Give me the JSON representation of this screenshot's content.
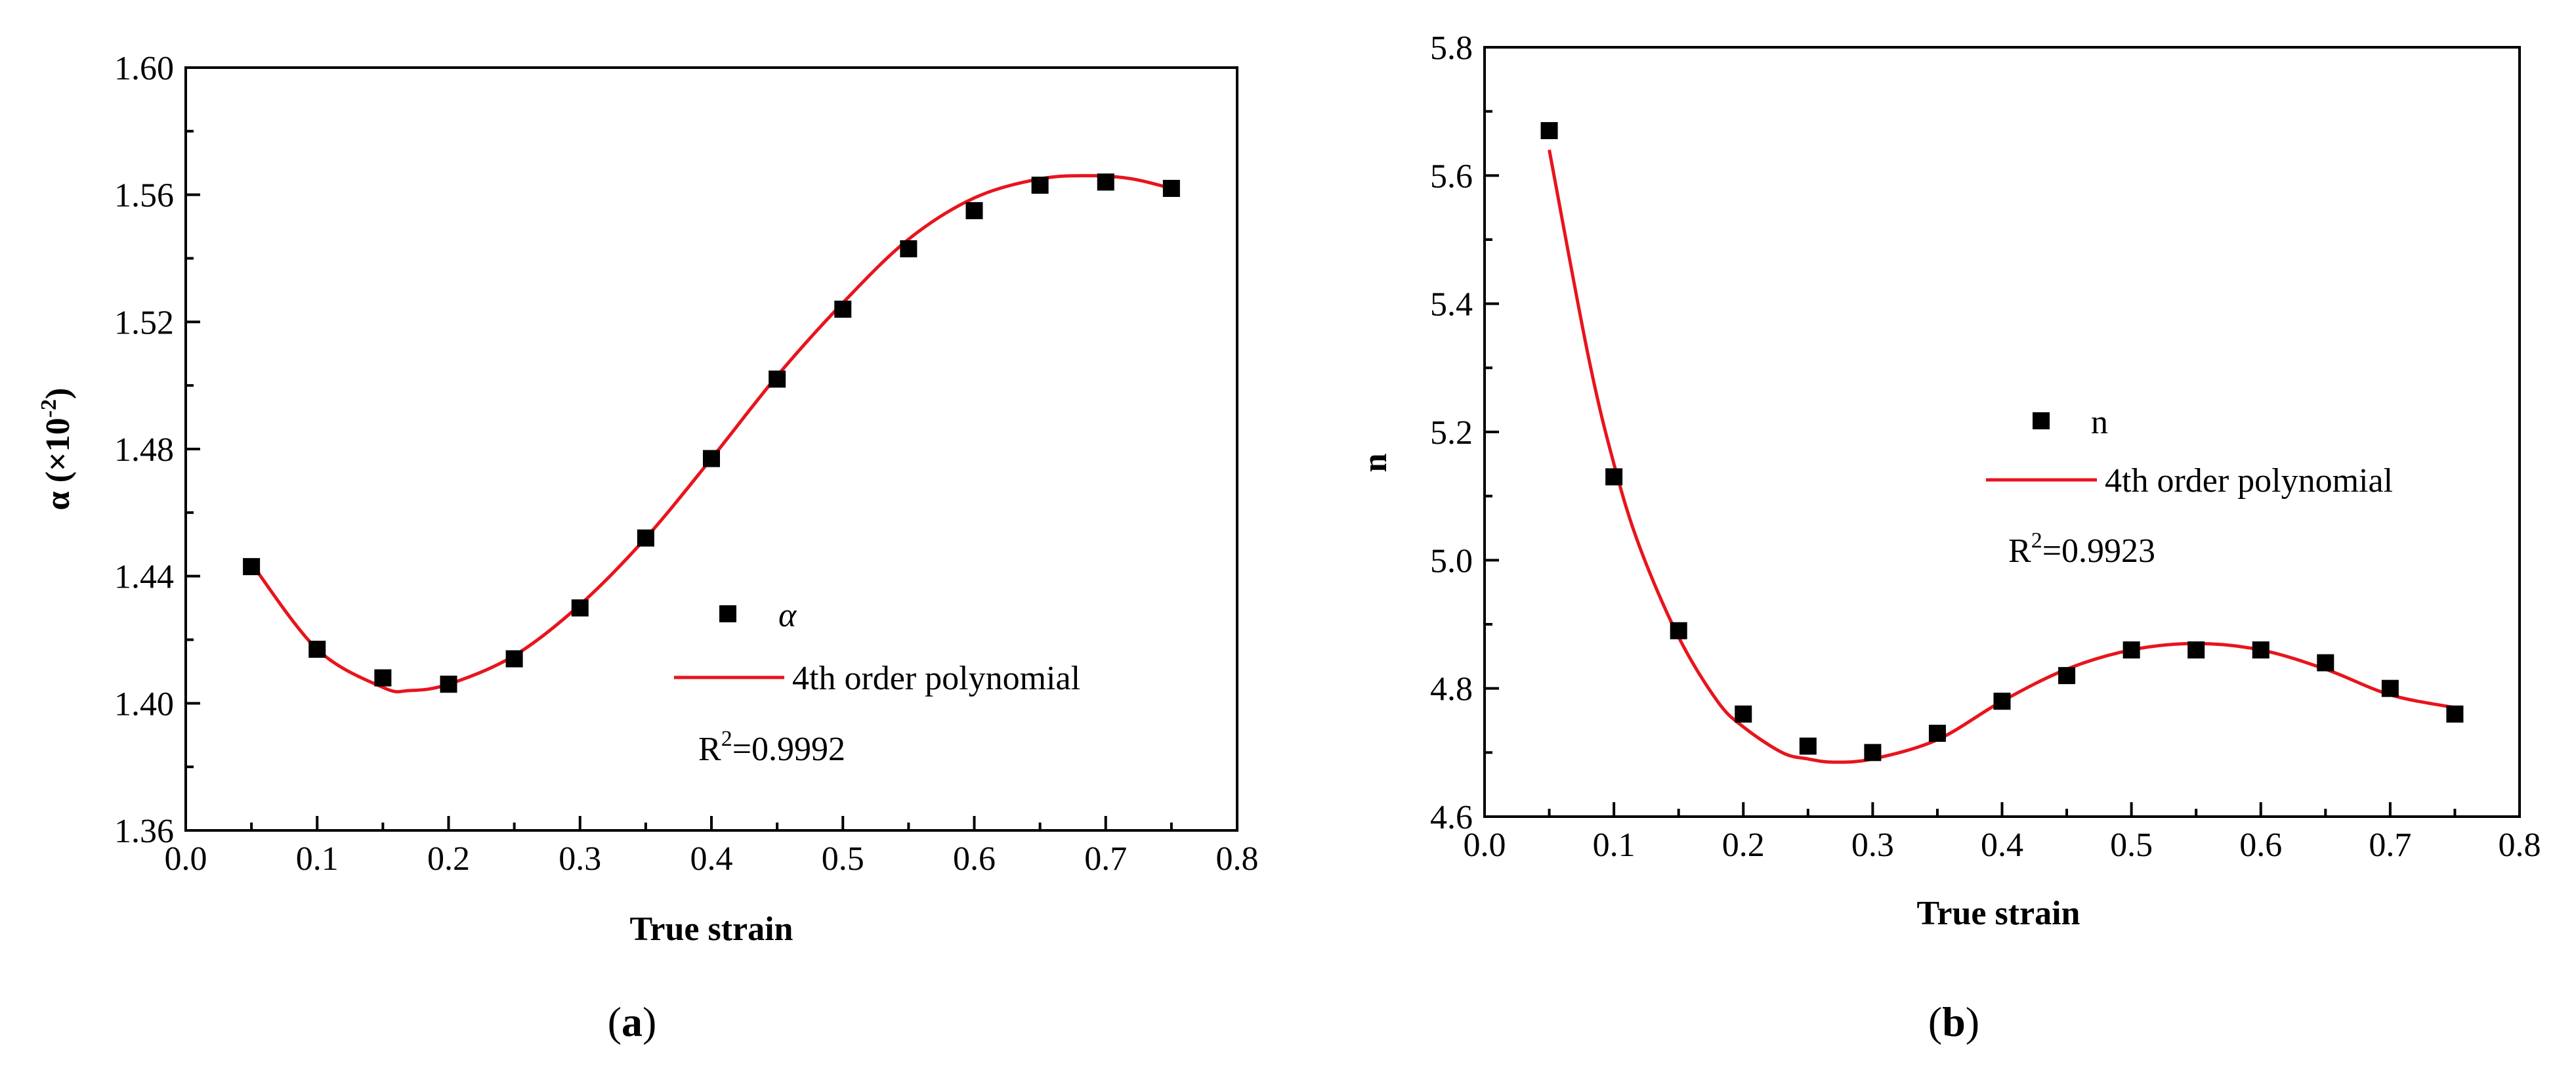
{
  "chart_data": [
    {
      "type": "scatter",
      "panel_label": "a",
      "title": "",
      "xlabel": "True strain",
      "ylabel": "α (×10⁻²)",
      "ylabel_main": "α (×10",
      "ylabel_exp": "-2",
      "ylabel_close": ")",
      "xlim": [
        0.0,
        0.8
      ],
      "ylim": [
        1.36,
        1.6
      ],
      "x_ticks": [
        0.0,
        0.1,
        0.2,
        0.3,
        0.4,
        0.5,
        0.6,
        0.7,
        0.8
      ],
      "x_tick_labels": [
        "0.0",
        "0.1",
        "0.2",
        "0.3",
        "0.4",
        "0.5",
        "0.6",
        "0.7",
        "0.8"
      ],
      "y_ticks": [
        1.36,
        1.4,
        1.44,
        1.48,
        1.52,
        1.56,
        1.6
      ],
      "y_tick_labels": [
        "1.36",
        "1.40",
        "1.44",
        "1.48",
        "1.52",
        "1.56",
        "1.60"
      ],
      "series": [
        {
          "name": "α",
          "kind": "points",
          "x": [
            0.05,
            0.1,
            0.15,
            0.2,
            0.25,
            0.3,
            0.35,
            0.4,
            0.45,
            0.5,
            0.55,
            0.6,
            0.65,
            0.7,
            0.75
          ],
          "y": [
            1.443,
            1.417,
            1.408,
            1.406,
            1.414,
            1.43,
            1.452,
            1.477,
            1.502,
            1.524,
            1.543,
            1.555,
            1.563,
            1.564,
            1.562
          ]
        },
        {
          "name": "4th order polynomial",
          "kind": "fit",
          "x": [
            0.05,
            0.1,
            0.15,
            0.17,
            0.2,
            0.25,
            0.3,
            0.35,
            0.4,
            0.45,
            0.5,
            0.55,
            0.6,
            0.65,
            0.69,
            0.72,
            0.75
          ],
          "y": [
            1.444,
            1.417,
            1.405,
            1.404,
            1.406,
            1.415,
            1.431,
            1.452,
            1.477,
            1.503,
            1.526,
            1.546,
            1.559,
            1.565,
            1.566,
            1.565,
            1.562
          ]
        }
      ],
      "legend_position": "center-right",
      "annotation_r2_label": "R",
      "annotation_r2_exp": "2",
      "annotation_r2_value": "=0.9992",
      "colors": {
        "points": "#000000",
        "fit": "#e8141c"
      }
    },
    {
      "type": "scatter",
      "panel_label": "b",
      "title": "",
      "xlabel": "True strain",
      "ylabel": "n",
      "xlim": [
        0.0,
        0.8
      ],
      "ylim": [
        4.6,
        5.8
      ],
      "x_ticks": [
        0.0,
        0.1,
        0.2,
        0.3,
        0.4,
        0.5,
        0.6,
        0.7,
        0.8
      ],
      "x_tick_labels": [
        "0.0",
        "0.1",
        "0.2",
        "0.3",
        "0.4",
        "0.5",
        "0.6",
        "0.7",
        "0.8"
      ],
      "y_ticks": [
        4.6,
        4.8,
        5.0,
        5.2,
        5.4,
        5.6,
        5.8
      ],
      "y_tick_labels": [
        "4.6",
        "4.8",
        "5.0",
        "5.2",
        "5.4",
        "5.6",
        "5.8"
      ],
      "series": [
        {
          "name": "n",
          "kind": "points",
          "x": [
            0.05,
            0.1,
            0.15,
            0.2,
            0.25,
            0.3,
            0.35,
            0.4,
            0.45,
            0.5,
            0.55,
            0.6,
            0.65,
            0.7,
            0.75
          ],
          "y": [
            5.67,
            5.13,
            4.89,
            4.76,
            4.71,
            4.7,
            4.73,
            4.78,
            4.82,
            4.86,
            4.86,
            4.86,
            4.84,
            4.8,
            4.76
          ]
        },
        {
          "name": "4th order polynomial",
          "kind": "fit",
          "x": [
            0.05,
            0.08,
            0.1,
            0.12,
            0.15,
            0.18,
            0.2,
            0.23,
            0.25,
            0.27,
            0.3,
            0.35,
            0.4,
            0.45,
            0.5,
            0.55,
            0.6,
            0.65,
            0.7,
            0.75
          ],
          "y": [
            5.64,
            5.32,
            5.15,
            5.02,
            4.88,
            4.78,
            4.74,
            4.7,
            4.69,
            4.685,
            4.69,
            4.72,
            4.78,
            4.83,
            4.86,
            4.87,
            4.86,
            4.83,
            4.79,
            4.77
          ]
        }
      ],
      "legend_position": "upper-center",
      "annotation_r2_label": "R",
      "annotation_r2_exp": "2",
      "annotation_r2_value": "=0.9923",
      "colors": {
        "points": "#000000",
        "fit": "#e8141c"
      }
    }
  ]
}
